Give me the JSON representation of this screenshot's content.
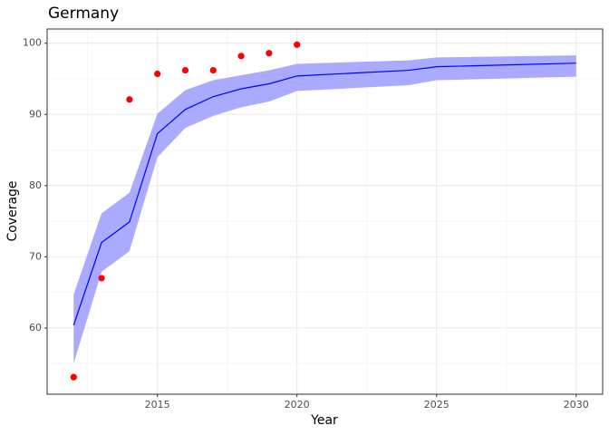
{
  "chart_data": {
    "type": "line",
    "title": "Germany",
    "x_label": "Year",
    "y_label": "Coverage",
    "xlim": [
      2011.05,
      2030.95
    ],
    "ylim": [
      50.7,
      102.0
    ],
    "xticks": [
      2015,
      2020,
      2025,
      2030
    ],
    "yticks": [
      60,
      70,
      80,
      90,
      100
    ],
    "xminor": [
      2012.5,
      2017.5,
      2022.5,
      2027.5
    ],
    "yminor": [
      55,
      65,
      75,
      85,
      95
    ],
    "grid": true,
    "band": {
      "color": "#aaaaff",
      "x": [
        2012,
        2013,
        2014,
        2015,
        2016,
        2017,
        2018,
        2019,
        2020,
        2024,
        2025,
        2030
      ],
      "lower": [
        55.0,
        67.9,
        70.8,
        84.0,
        88.1,
        89.8,
        91.0,
        91.8,
        93.3,
        94.1,
        94.8,
        95.3
      ],
      "upper": [
        64.7,
        76.1,
        79.0,
        90.1,
        93.4,
        94.8,
        95.5,
        96.2,
        97.1,
        97.6,
        98.0,
        98.3
      ]
    },
    "line": {
      "color": "#0000ff",
      "x": [
        2012,
        2013,
        2014,
        2015,
        2016,
        2017,
        2018,
        2019,
        2020,
        2024,
        2025,
        2030
      ],
      "values": [
        60.4,
        72.0,
        74.9,
        87.3,
        90.7,
        92.5,
        93.6,
        94.3,
        95.4,
        96.2,
        96.7,
        97.2
      ]
    },
    "points": {
      "color": "#ff0000",
      "x": [
        2012,
        2013,
        2014,
        2015,
        2016,
        2017,
        2018,
        2019,
        2020
      ],
      "values": [
        53.1,
        67.0,
        92.1,
        95.7,
        96.2,
        96.2,
        98.2,
        98.6,
        99.8
      ]
    }
  }
}
